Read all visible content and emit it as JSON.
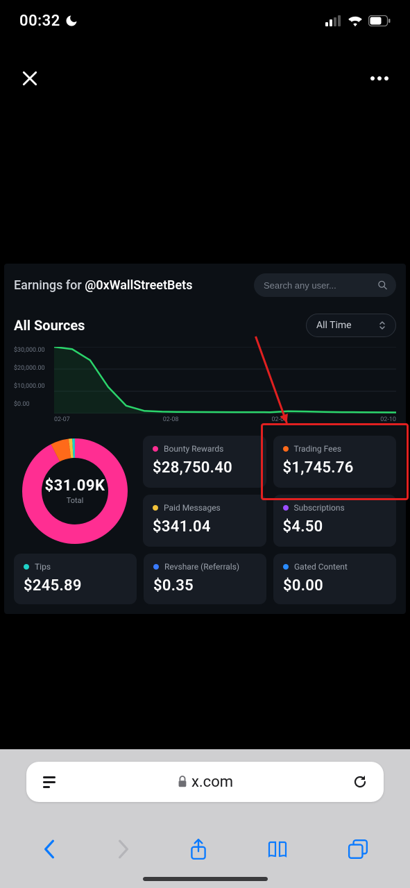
{
  "status": {
    "time": "00:32",
    "moon_icon": "moon",
    "signal_bars": 4,
    "signal_active": 2,
    "wifi_level": 3,
    "battery_pct": 60
  },
  "top_nav": {
    "close_icon": "x",
    "more_icon": "ellipsis"
  },
  "dashboard": {
    "title_prefix": "Earnings for ",
    "handle": "@0xWallStreetBets",
    "search_placeholder": "Search any user...",
    "section_title": "All Sources",
    "range_label": "All Time",
    "chart": {
      "type": "area",
      "y_ticks": [
        "$30,000.00",
        "$20,000.00",
        "$10,000.00",
        "$0.00"
      ],
      "ylim": [
        0,
        30000
      ],
      "x_ticks": [
        "02-07",
        "02-08",
        "02-09",
        "02-10"
      ],
      "line_color": "#2bd46b",
      "area_color": "#145a2e",
      "grid_color": "#1e242d",
      "background_color": "#0c1015",
      "series": [
        30000,
        29000,
        24000,
        12000,
        3500,
        1200,
        800,
        700,
        650,
        620,
        600,
        580,
        570,
        1000,
        900,
        700,
        600,
        550,
        500,
        480
      ]
    },
    "donut": {
      "total_label": "Total",
      "total_value": "$31.09K",
      "slices": [
        {
          "label": "Bounty Rewards",
          "value": 28750.4,
          "color": "#ff2e92"
        },
        {
          "label": "Trading Fees",
          "value": 1745.76,
          "color": "#ff6a1a"
        },
        {
          "label": "Paid Messages",
          "value": 341.04,
          "color": "#f2c23a"
        },
        {
          "label": "Tips",
          "value": 245.89,
          "color": "#1fd1c7"
        },
        {
          "label": "Subscriptions",
          "value": 4.5,
          "color": "#9b4dff"
        },
        {
          "label": "Revshare",
          "value": 0.35,
          "color": "#3a7bff"
        },
        {
          "label": "Gated Content",
          "value": 0.0,
          "color": "#2a8cff"
        }
      ],
      "stroke_width": 28
    },
    "cards_top": [
      {
        "key": "bounty",
        "label": "Bounty Rewards",
        "value": "$28,750.40",
        "dot": "#ff2e92"
      },
      {
        "key": "trading",
        "label": "Trading Fees",
        "value": "$1,745.76",
        "dot": "#ff6a1a",
        "highlighted": true
      },
      {
        "key": "paid",
        "label": "Paid Messages",
        "value": "$341.04",
        "dot": "#f2c23a"
      },
      {
        "key": "subs",
        "label": "Subscriptions",
        "value": "$4.50",
        "dot": "#9b4dff"
      }
    ],
    "cards_bottom": [
      {
        "key": "tips",
        "label": "Tips",
        "value": "$245.89",
        "dot": "#1fd1c7"
      },
      {
        "key": "revshare",
        "label": "Revshare (Referrals)",
        "value": "$0.35",
        "dot": "#3a7bff"
      },
      {
        "key": "gated",
        "label": "Gated Content",
        "value": "$0.00",
        "dot": "#2a8cff"
      }
    ],
    "annotation": {
      "arrow_color": "#e02020",
      "highlight_color": "#e02020"
    }
  },
  "browser": {
    "url_text": "x.com",
    "lock_icon": "lock",
    "aa_icon": "text-format",
    "reload_icon": "reload",
    "nav_icons": [
      "back",
      "forward",
      "share",
      "bookmarks",
      "tabs"
    ],
    "back_color": "#0a7aff",
    "forward_color": "#b5b5b9",
    "icon_color": "#0a7aff",
    "chrome_bg": "#cfcfd1",
    "urlbar_bg": "#ffffff"
  }
}
